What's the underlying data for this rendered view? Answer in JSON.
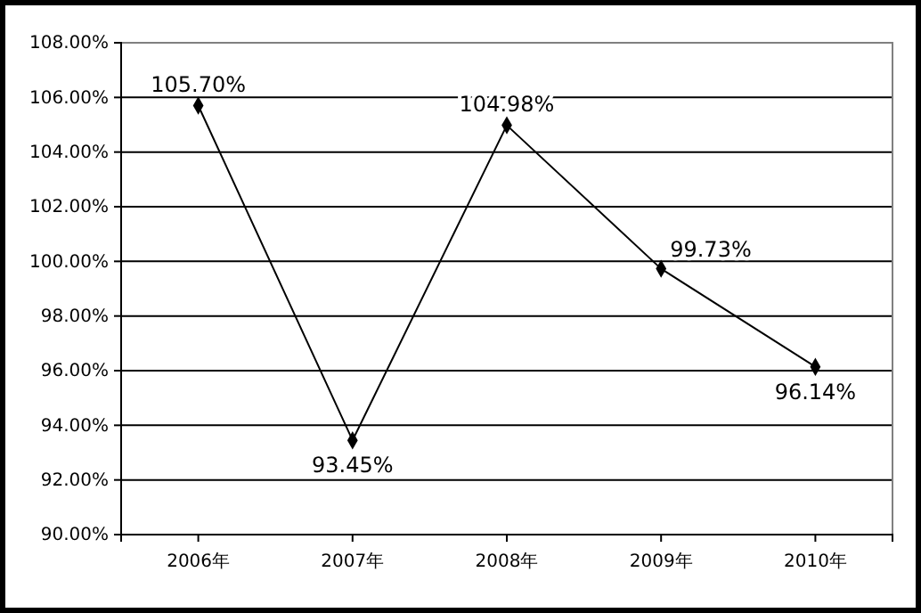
{
  "chart_data": {
    "type": "line",
    "categories": [
      "2006年",
      "2007年",
      "2008年",
      "2009年",
      "2010年"
    ],
    "series": [
      {
        "color": "#000000",
        "values": [
          105.7,
          93.45,
          104.98,
          99.73,
          96.14
        ],
        "value_labels": [
          "105.70%",
          "93.45%",
          "104.98%",
          "99.73%",
          "96.14%"
        ]
      }
    ],
    "ylim": [
      90,
      108
    ],
    "yticks": [
      {
        "value": 90,
        "label": "90.00%"
      },
      {
        "value": 92,
        "label": "92.00%"
      },
      {
        "value": 94,
        "label": "94.00%"
      },
      {
        "value": 96,
        "label": "96.00%"
      },
      {
        "value": 98,
        "label": "98.00%"
      },
      {
        "value": 100,
        "label": "100.00%"
      },
      {
        "value": 102,
        "label": "102.00%"
      },
      {
        "value": 104,
        "label": "104.00%"
      },
      {
        "value": 106,
        "label": "106.00%"
      },
      {
        "value": 108,
        "label": "108.00%"
      }
    ],
    "grid": "y",
    "marker": "diamond",
    "line_style": "solid"
  }
}
